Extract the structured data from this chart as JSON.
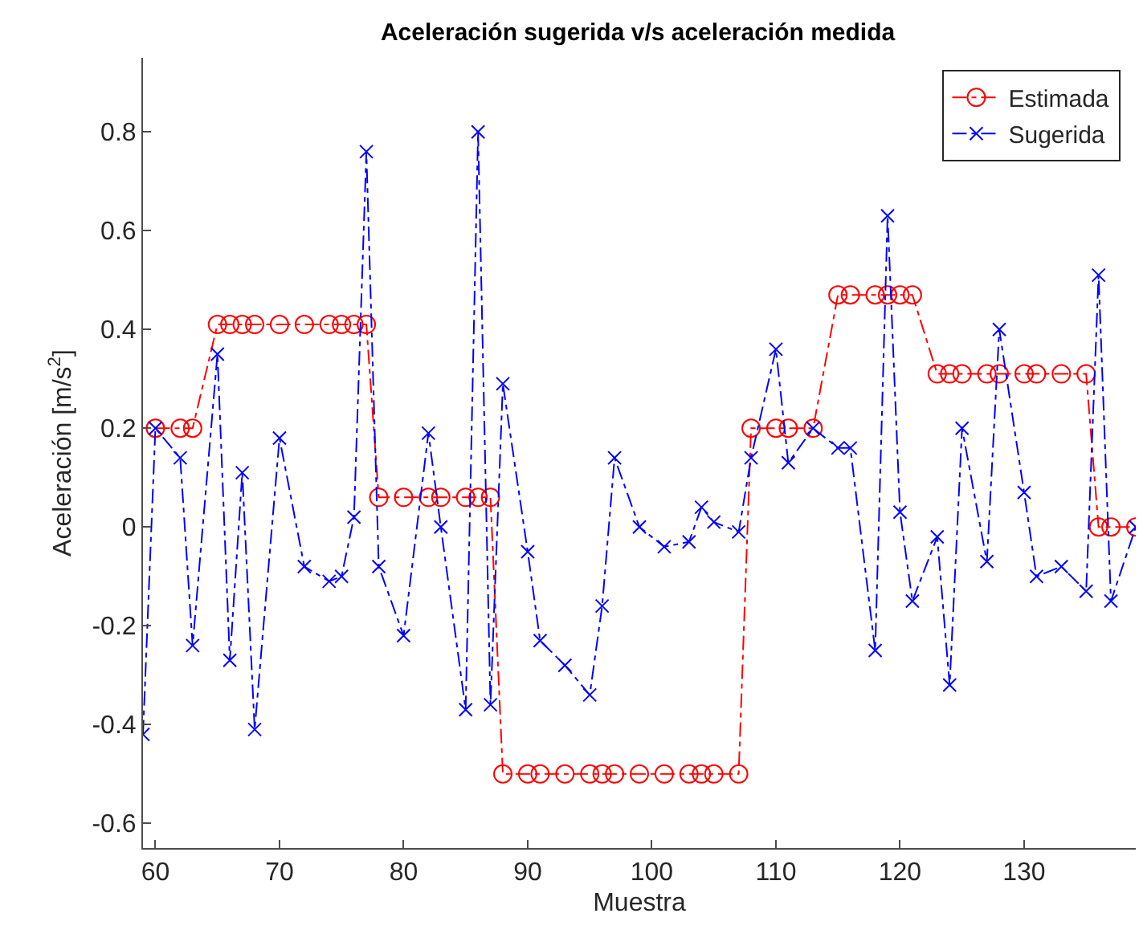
{
  "chart_data": {
    "type": "line",
    "title": "Aceleración sugerida v/s aceleración medida",
    "xlabel": "Muestra",
    "ylabel": "Aceleración [m/s$^{2}$]",
    "xlim": [
      59,
      139
    ],
    "xticks": [
      60,
      70,
      80,
      90,
      100,
      110,
      120,
      130
    ],
    "ylim": [
      -0.65,
      0.95
    ],
    "yticks": [
      -0.6,
      -0.4,
      -0.2,
      0,
      0.2,
      0.4,
      0.6,
      0.8
    ],
    "grid": false,
    "legend": "top right",
    "line_style": "dashdot",
    "series": [
      {
        "name": "Estimada",
        "color": "#ff0000",
        "marker": "circle",
        "x": [
          60,
          62,
          63,
          65,
          66,
          67,
          68,
          70,
          72,
          74,
          75,
          76,
          77,
          78,
          80,
          82,
          83,
          85,
          86,
          87,
          88,
          90,
          91,
          93,
          95,
          96,
          97,
          99,
          101,
          103,
          104,
          105,
          107,
          108,
          110,
          111,
          113,
          115,
          116,
          118,
          119,
          120,
          121,
          123,
          124,
          125,
          127,
          128,
          130,
          131,
          133,
          135,
          136,
          137,
          139
        ],
        "values": [
          0.2,
          0.2,
          0.2,
          0.41,
          0.41,
          0.41,
          0.41,
          0.41,
          0.41,
          0.41,
          0.41,
          0.41,
          0.41,
          0.06,
          0.06,
          0.06,
          0.06,
          0.06,
          0.06,
          0.06,
          -0.5,
          -0.5,
          -0.5,
          -0.5,
          -0.5,
          -0.5,
          -0.5,
          -0.5,
          -0.5,
          -0.5,
          -0.5,
          -0.5,
          -0.5,
          0.2,
          0.2,
          0.2,
          0.2,
          0.47,
          0.47,
          0.47,
          0.47,
          0.47,
          0.47,
          0.31,
          0.31,
          0.31,
          0.31,
          0.31,
          0.31,
          0.31,
          0.31,
          0.31,
          0,
          0,
          0
        ]
      },
      {
        "name": "Sugerida",
        "color": "#0000ff",
        "marker": "cross",
        "x": [
          59,
          60,
          62,
          63,
          65,
          66,
          67,
          68,
          70,
          72,
          74,
          75,
          76,
          77,
          78,
          80,
          82,
          83,
          85,
          86,
          87,
          88,
          90,
          91,
          93,
          95,
          96,
          97,
          99,
          101,
          103,
          104,
          105,
          107,
          108,
          110,
          111,
          113,
          115,
          116,
          118,
          119,
          120,
          121,
          123,
          124,
          125,
          127,
          128,
          130,
          131,
          133,
          135,
          136,
          137,
          139
        ],
        "values": [
          -0.42,
          0.2,
          0.14,
          -0.24,
          0.35,
          -0.27,
          0.11,
          -0.41,
          0.18,
          -0.08,
          -0.11,
          -0.1,
          0.02,
          0.76,
          -0.08,
          -0.22,
          0.19,
          0.0,
          -0.37,
          0.8,
          -0.36,
          0.29,
          -0.05,
          -0.23,
          -0.28,
          -0.34,
          -0.16,
          0.14,
          0.0,
          -0.04,
          -0.03,
          0.04,
          0.01,
          -0.01,
          0.14,
          0.36,
          0.13,
          0.2,
          0.16,
          0.16,
          -0.25,
          0.63,
          0.03,
          -0.15,
          -0.02,
          -0.32,
          0.2,
          -0.07,
          0.4,
          0.07,
          -0.1,
          -0.08,
          -0.13,
          0.51,
          -0.15,
          0.0
        ]
      }
    ]
  }
}
